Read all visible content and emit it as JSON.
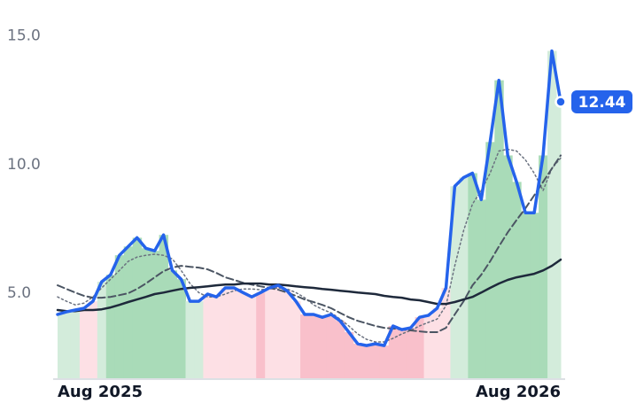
{
  "chart_data": {
    "type": "line",
    "categories": [
      "Aug 2025",
      null,
      null,
      null,
      null,
      null,
      null,
      null,
      null,
      null,
      null,
      null,
      null,
      null,
      null,
      null,
      null,
      null,
      null,
      null,
      null,
      null,
      null,
      null,
      null,
      null,
      null,
      null,
      null,
      null,
      null,
      null,
      null,
      null,
      null,
      null,
      null,
      null,
      null,
      null,
      null,
      null,
      null,
      null,
      null,
      null,
      null,
      null,
      null,
      null,
      null,
      null,
      null,
      null,
      null,
      null,
      null,
      "Aug 2026"
    ],
    "series": [
      {
        "color": "#2563eb",
        "style": "solid",
        "width": 3.5,
        "values": [
          4.18,
          4.28,
          4.35,
          4.42,
          4.69,
          5.45,
          5.72,
          6.48,
          6.82,
          7.16,
          6.75,
          6.65,
          7.27,
          5.89,
          5.55,
          4.69,
          4.69,
          4.97,
          4.86,
          5.21,
          5.21,
          5.03,
          4.86,
          5.03,
          5.21,
          5.31,
          5.1,
          4.69,
          4.18,
          4.18,
          4.07,
          4.18,
          3.93,
          3.49,
          3.04,
          2.97,
          3.04,
          2.97,
          3.73,
          3.59,
          3.66,
          4.07,
          4.14,
          4.42,
          5.21,
          9.16,
          9.5,
          9.67,
          8.64,
          10.88,
          13.28,
          10.36,
          9.33,
          8.13,
          8.13,
          10.36,
          14.42,
          12.44
        ]
      },
      {
        "color": "#1e293b",
        "style": "solid",
        "width": 2.5,
        "values": [
          4.35,
          4.31,
          4.31,
          4.35,
          4.35,
          4.38,
          4.45,
          4.55,
          4.66,
          4.76,
          4.86,
          4.97,
          5.03,
          5.1,
          5.17,
          5.21,
          5.24,
          5.27,
          5.31,
          5.34,
          5.34,
          5.38,
          5.38,
          5.38,
          5.34,
          5.34,
          5.31,
          5.27,
          5.24,
          5.21,
          5.17,
          5.14,
          5.1,
          5.07,
          5.03,
          5.0,
          4.97,
          4.9,
          4.86,
          4.83,
          4.76,
          4.73,
          4.66,
          4.59,
          4.59,
          4.66,
          4.76,
          4.86,
          5.03,
          5.21,
          5.38,
          5.52,
          5.62,
          5.69,
          5.76,
          5.89,
          6.07,
          6.31
        ]
      },
      {
        "color": "#4b5563",
        "style": "dashed",
        "width": 2,
        "values": [
          5.31,
          5.17,
          5.03,
          4.9,
          4.83,
          4.83,
          4.86,
          4.93,
          5.0,
          5.17,
          5.38,
          5.62,
          5.86,
          6.0,
          6.07,
          6.03,
          6.0,
          5.93,
          5.79,
          5.62,
          5.52,
          5.41,
          5.34,
          5.27,
          5.21,
          5.14,
          5.03,
          4.9,
          4.76,
          4.66,
          4.55,
          4.42,
          4.24,
          4.07,
          3.93,
          3.83,
          3.73,
          3.66,
          3.63,
          3.59,
          3.56,
          3.52,
          3.49,
          3.49,
          3.66,
          4.18,
          4.69,
          5.31,
          5.72,
          6.24,
          6.82,
          7.37,
          7.85,
          8.3,
          8.81,
          9.33,
          9.85,
          10.36
        ]
      },
      {
        "color": "#6b7280",
        "style": "dotted",
        "width": 1.5,
        "values": [
          4.86,
          4.69,
          4.55,
          4.62,
          4.86,
          5.21,
          5.55,
          5.89,
          6.24,
          6.41,
          6.48,
          6.52,
          6.48,
          6.34,
          5.89,
          5.38,
          5.03,
          4.86,
          4.86,
          4.97,
          5.1,
          5.17,
          5.17,
          5.14,
          5.17,
          5.21,
          5.17,
          5.03,
          4.83,
          4.55,
          4.38,
          4.24,
          4.0,
          3.73,
          3.42,
          3.21,
          3.11,
          3.11,
          3.25,
          3.42,
          3.56,
          3.73,
          3.87,
          4.0,
          4.52,
          6.07,
          7.44,
          8.47,
          8.99,
          9.67,
          10.53,
          10.6,
          10.53,
          10.19,
          9.67,
          8.99,
          9.85,
          10.26
        ]
      }
    ],
    "band_colors": [
      "#d3ecdb",
      "#d3ecdb",
      "#d3ecdb",
      "#fde0e5",
      "#fde0e5",
      "#d3ecdb",
      "#a9dbb8",
      "#a9dbb8",
      "#a9dbb8",
      "#a9dbb8",
      "#a9dbb8",
      "#a9dbb8",
      "#a9dbb8",
      "#a9dbb8",
      "#a9dbb8",
      "#d3ecdb",
      "#d3ecdb",
      "#fde0e5",
      "#fde0e5",
      "#fde0e5",
      "#fde0e5",
      "#fde0e5",
      "#fde0e5",
      "#f9c0cb",
      "#fde0e5",
      "#fde0e5",
      "#fde0e5",
      "#fde0e5",
      "#f9c0cb",
      "#f9c0cb",
      "#f9c0cb",
      "#f9c0cb",
      "#f9c0cb",
      "#f9c0cb",
      "#f9c0cb",
      "#f9c0cb",
      "#f9c0cb",
      "#f9c0cb",
      "#f9c0cb",
      "#f9c0cb",
      "#f9c0cb",
      "#f9c0cb",
      "#fde0e5",
      "#fde0e5",
      "#fde0e5",
      "#d3ecdb",
      "#d3ecdb",
      "#a9dbb8",
      "#a9dbb8",
      "#a9dbb8",
      "#a9dbb8",
      "#a9dbb8",
      "#a9dbb8",
      "#a9dbb8",
      "#a9dbb8",
      "#a9dbb8",
      "#d3ecdb",
      "#d3ecdb"
    ],
    "ylim": [
      1.7,
      16.4
    ],
    "yticks": [
      {
        "value": 5,
        "label": "5.0"
      },
      {
        "value": 10,
        "label": "10.0"
      },
      {
        "value": 15,
        "label": "15.0"
      }
    ],
    "grid": false
  }
}
